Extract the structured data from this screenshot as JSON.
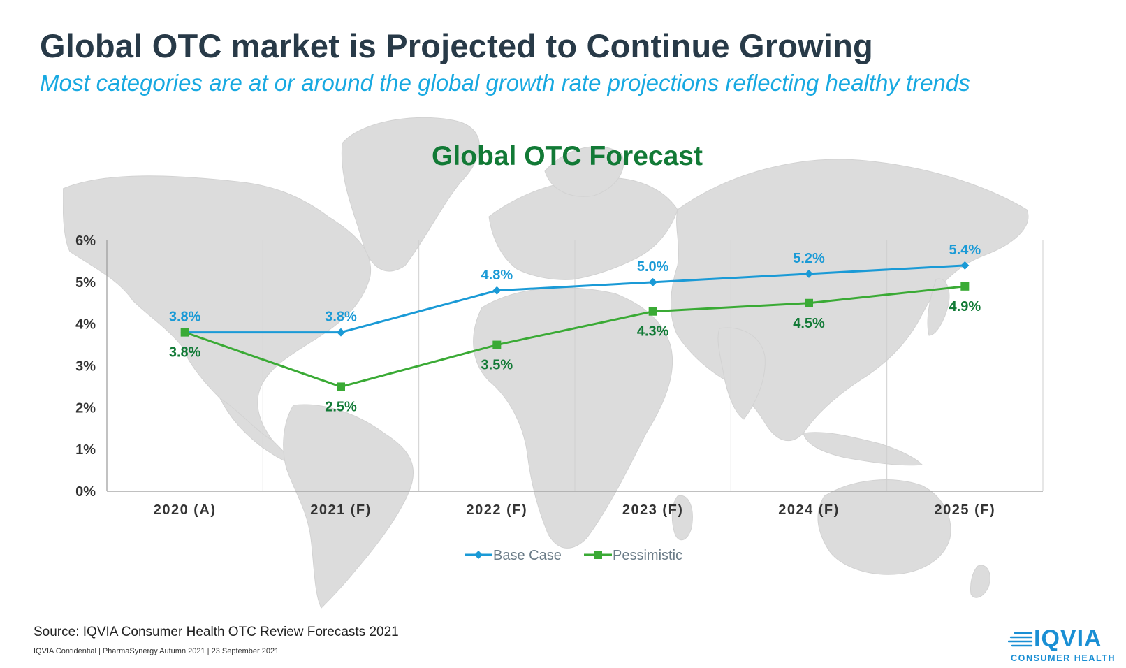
{
  "slide": {
    "title": "Global OTC market is Projected to Continue Growing",
    "subtitle": "Most categories are at or around the global growth rate projections reflecting healthy trends",
    "source": "Source: IQVIA Consumer Health OTC Review Forecasts 2021",
    "footer": "IQVIA Confidential | PharmaSynergy Autumn 2021 | 23 September 2021"
  },
  "logo": {
    "name": "IQVIA",
    "tagline": "CONSUMER HEALTH",
    "color": "#1a8fd4"
  },
  "chart_data": {
    "type": "line",
    "title": "Global OTC Forecast",
    "categories": [
      "2020 (A)",
      "2021 (F)",
      "2022 (F)",
      "2023 (F)",
      "2024 (F)",
      "2025 (F)"
    ],
    "ylim": [
      0,
      6
    ],
    "yticks": [
      "0%",
      "1%",
      "2%",
      "3%",
      "4%",
      "5%",
      "6%"
    ],
    "grid": "vertical",
    "legend_position": "bottom",
    "series": [
      {
        "name": "Base Case",
        "values": [
          3.8,
          3.8,
          4.8,
          5.0,
          5.2,
          5.4
        ],
        "labels": [
          "3.8%",
          "3.8%",
          "4.8%",
          "5.0%",
          "5.2%",
          "5.4%"
        ],
        "color": "#1a9ad6",
        "label_color": "#1a9ad6",
        "marker": "diamond"
      },
      {
        "name": "Pessimistic",
        "values": [
          3.8,
          2.5,
          3.5,
          4.3,
          4.5,
          4.9
        ],
        "labels": [
          "3.8%",
          "2.5%",
          "3.5%",
          "4.3%",
          "4.5%",
          "4.9%"
        ],
        "color": "#3aaa35",
        "label_color": "#127a36",
        "marker": "square"
      }
    ],
    "title_color": "#127a36"
  }
}
